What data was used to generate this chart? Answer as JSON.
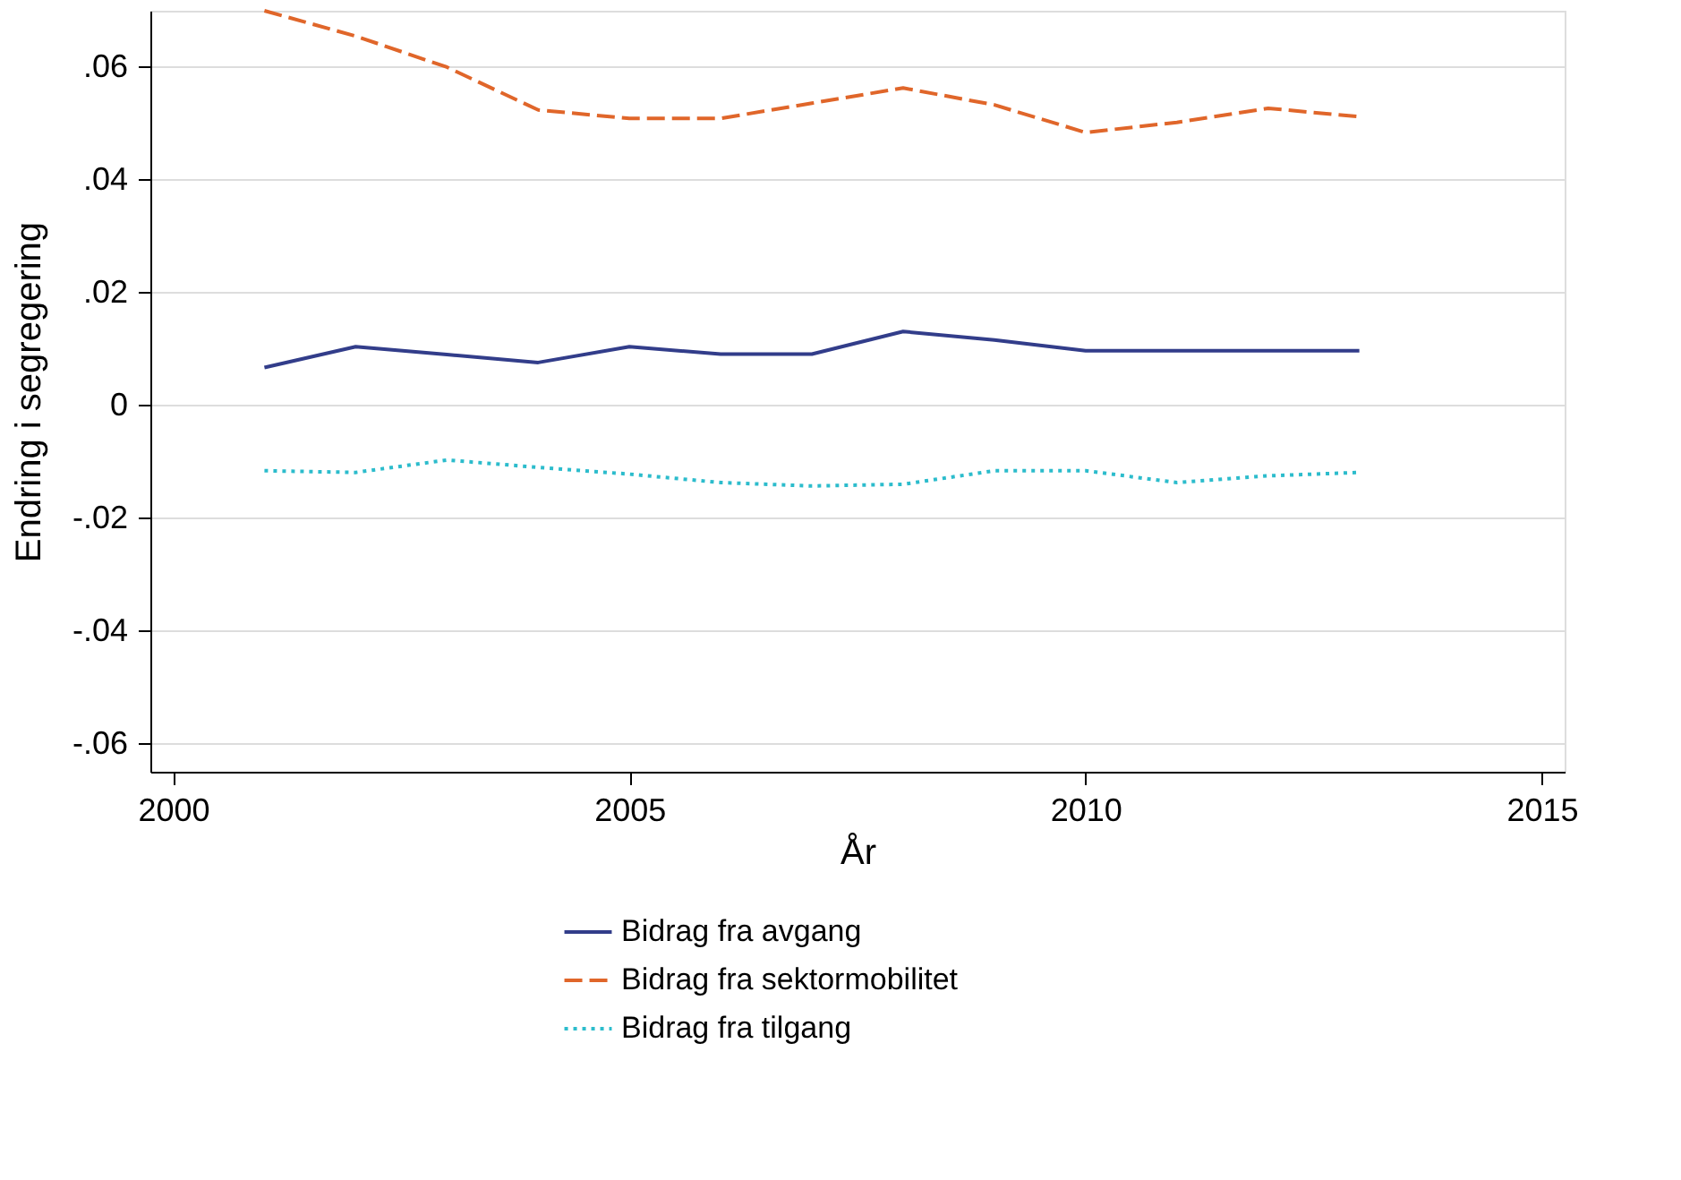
{
  "chart_data": {
    "type": "line",
    "xlabel": "År",
    "ylabel": "Endring i segregering",
    "x": [
      2001,
      2002,
      2003,
      2004,
      2005,
      2006,
      2007,
      2008,
      2009,
      2010,
      2011,
      2012,
      2013
    ],
    "series": [
      {
        "name": "Bidrag fra avgang",
        "color": "#323d8a",
        "line_style": "solid",
        "values": [
          0.0067,
          0.0104,
          0.009,
          0.0076,
          0.0104,
          0.0091,
          0.0091,
          0.0131,
          0.0116,
          0.0097,
          0.0097,
          0.0097,
          0.0097
        ]
      },
      {
        "name": "Bidrag fra sektormobilitet",
        "color": "#e0662a",
        "line_style": "dashed",
        "values": [
          0.07,
          0.0655,
          0.06,
          0.0524,
          0.0509,
          0.0509,
          0.0536,
          0.0563,
          0.0533,
          0.0484,
          0.0502,
          0.0527,
          0.0512
        ]
      },
      {
        "name": "Bidrag fra tilgang",
        "color": "#2cbccc",
        "line_style": "dotted",
        "values": [
          -0.0116,
          -0.0119,
          -0.0097,
          -0.011,
          -0.0122,
          -0.0137,
          -0.0143,
          -0.014,
          -0.0116,
          -0.0116,
          -0.0137,
          -0.0125,
          -0.0119
        ]
      }
    ],
    "xlim": [
      1999.75,
      2015.25
    ],
    "xticks": [
      2000,
      2005,
      2010,
      2015
    ],
    "ylim": [
      -0.065,
      0.07
    ],
    "yticks": [
      {
        "value": -0.06,
        "label": "-.06"
      },
      {
        "value": -0.04,
        "label": "-.04"
      },
      {
        "value": -0.02,
        "label": "-.02"
      },
      {
        "value": 0,
        "label": "0"
      },
      {
        "value": 0.02,
        "label": ".02"
      },
      {
        "value": 0.04,
        "label": ".04"
      },
      {
        "value": 0.06,
        "label": ".06"
      }
    ],
    "grid": "y",
    "legend": "bottom"
  }
}
